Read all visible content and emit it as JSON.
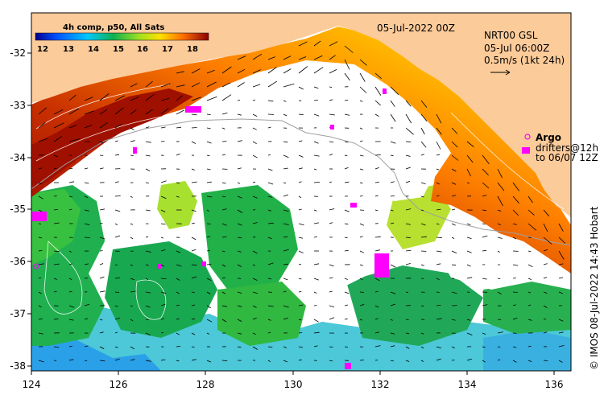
{
  "map": {
    "date_label": "05-Jul-2022 00Z",
    "product": {
      "line1": "NRT00 GSL",
      "line2": "05-Jul 06:00Z",
      "line3": "0.5m/s (1kt 24h)"
    },
    "colorbar": {
      "title": "4h comp, p50, All Sats",
      "ticks": [
        "12",
        "13",
        "14",
        "15",
        "16",
        "17",
        "18"
      ]
    },
    "argo": {
      "title": "Argo",
      "line1": "drifters@12h",
      "line2": "to 06/07 12Z"
    },
    "credit": "© IMOS 08-Jul-2022 14:43 Hobart",
    "x_ticks": [
      "124",
      "126",
      "128",
      "130",
      "132",
      "134",
      "136"
    ],
    "y_ticks": [
      "-32",
      "-33",
      "-34",
      "-35",
      "-36",
      "-37",
      "-38"
    ],
    "colors": {
      "land": "#fccb9a",
      "cold": "#00008c",
      "warm": "#8c0000",
      "argo": "#ff00ff"
    }
  },
  "chart_data": {
    "type": "heatmap",
    "title": "4h comp, p50, All Sats",
    "xlabel": "",
    "ylabel": "",
    "xlim": [
      124,
      136.3
    ],
    "ylim": [
      -38.1,
      -31.2
    ],
    "x_ticks": [
      124,
      126,
      128,
      130,
      132,
      134,
      136
    ],
    "y_ticks": [
      -32,
      -33,
      -34,
      -35,
      -36,
      -37,
      -38
    ],
    "colorbar_range": [
      12,
      18.5
    ],
    "annotations": [
      "05-Jul-2022 00Z",
      "NRT00 GSL",
      "05-Jul 06:00Z",
      "0.5m/s (1kt 24h)",
      "Argo",
      "drifters@12h",
      "to 06/07 12Z"
    ]
  }
}
